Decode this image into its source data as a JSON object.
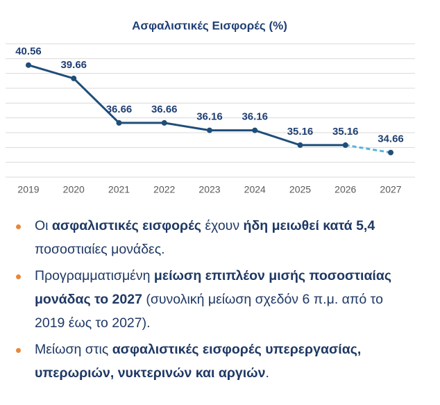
{
  "chart_data": {
    "type": "line",
    "title": "Ασφαλιστικές Εισφορές (%)",
    "categories": [
      "2019",
      "2020",
      "2021",
      "2022",
      "2023",
      "2024",
      "2025",
      "2026",
      "2027"
    ],
    "values": [
      40.56,
      39.66,
      36.66,
      36.66,
      36.16,
      36.16,
      35.16,
      35.16,
      34.66
    ],
    "color": "#1f4e79",
    "dashed_color": "#5bb4d8",
    "dashed_from_index": 7,
    "ylim": [
      33,
      42
    ],
    "yticks": [
      33,
      34,
      35,
      36,
      37,
      38,
      39,
      40,
      41,
      42
    ],
    "grid": true
  },
  "bullets": [
    [
      {
        "text": "Οι ",
        "bold": false
      },
      {
        "text": "ασφαλιστικές εισφορές",
        "bold": true
      },
      {
        "text": " έχουν ",
        "bold": false
      },
      {
        "text": "ήδη μειωθεί κατά 5,4",
        "bold": true
      },
      {
        "text": " ποσοστιαίες μονάδες.",
        "bold": false
      }
    ],
    [
      {
        "text": "Προγραμματισμένη ",
        "bold": false
      },
      {
        "text": "μείωση επιπλέον μισής ποσοστιαίας μονάδας το 2027",
        "bold": true
      },
      {
        "text": " (συνολική μείωση σχεδόν 6 π.μ. από το 2019 έως το 2027).",
        "bold": false
      }
    ],
    [
      {
        "text": "Μείωση στις ",
        "bold": false
      },
      {
        "text": "ασφαλιστικές εισφορές υπερεργασίας, υπερωριών, νυκτερινών και αργιών",
        "bold": true
      },
      {
        "text": ".",
        "bold": false
      }
    ]
  ]
}
